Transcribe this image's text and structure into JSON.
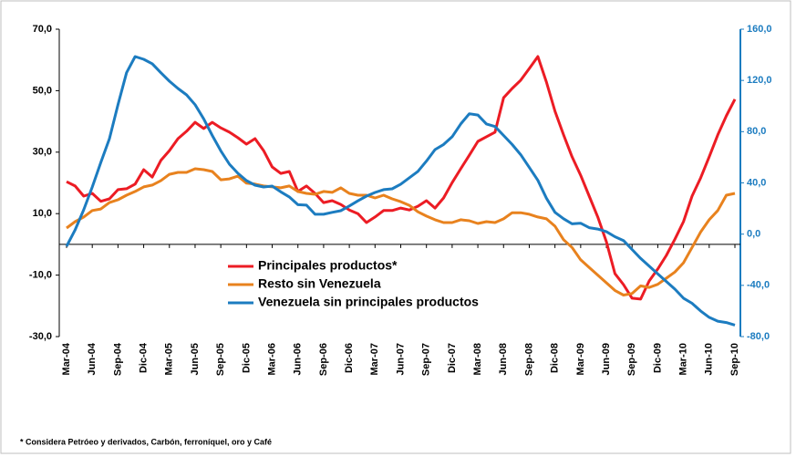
{
  "chart_data": {
    "type": "line",
    "footnote": "* Considera  Petróeo  y derivados, Carbón, ferroníquel,  oro   y Café",
    "categories": [
      "Mar-04",
      null,
      null,
      "Jun-04",
      null,
      null,
      "Sep-04",
      null,
      null,
      "Dic-04",
      null,
      null,
      "Mar-05",
      null,
      null,
      "Jun-05",
      null,
      null,
      "Sep-05",
      null,
      null,
      "Dic-05",
      null,
      null,
      "Mar-06",
      null,
      null,
      "Jun-06",
      null,
      null,
      "Sep-06",
      null,
      null,
      "Dic-06",
      null,
      null,
      "Mar-07",
      null,
      null,
      "Jun-07",
      null,
      null,
      "Sep-07",
      null,
      null,
      "Dic-07",
      null,
      null,
      "Mar-08",
      null,
      null,
      "Jun-08",
      null,
      null,
      "Sep-08",
      null,
      null,
      "Dic-08",
      null,
      null,
      "Mar-09",
      null,
      null,
      "Jun-09",
      null,
      null,
      "Sep-09",
      null,
      null,
      "Dic-09",
      null,
      null,
      "Mar-10",
      null,
      null,
      "Jun-10",
      null,
      null,
      "Sep-10"
    ],
    "series": [
      {
        "name": "Principales productos*",
        "color": "#ec1c24",
        "axis": "y",
        "values": [
          20.4,
          19,
          15.7,
          16.6,
          14,
          14.8,
          17.8,
          18.1,
          19.6,
          24.3,
          21.9,
          27.3,
          30.5,
          34.4,
          36.8,
          39.7,
          37.7,
          39.7,
          37.9,
          36.5,
          34.7,
          32.6,
          34.4,
          30.5,
          25.2,
          23.1,
          23.7,
          17.2,
          19,
          16.6,
          13.6,
          14.2,
          13,
          11.2,
          10,
          7.1,
          8.9,
          11,
          11,
          11.8,
          11.2,
          12.4,
          14.2,
          11.8,
          15.1,
          20.1,
          24.6,
          29,
          33.5,
          35,
          36.5,
          47.7,
          50.7,
          53.4,
          57.2,
          61.1,
          52.8,
          43.3,
          35.6,
          28.5,
          22.5,
          15.7,
          8.9,
          0.9,
          -9.5,
          -13.1,
          -17.5,
          -17.8,
          -11.9,
          -8,
          -3.6,
          1.7,
          7.4,
          15.7,
          21.6,
          28.5,
          35.6,
          41.8,
          47.2
        ]
      },
      {
        "name": "Resto sin Venezuela",
        "color": "#e8821e",
        "axis": "y",
        "values": [
          5.3,
          7.4,
          8.9,
          11,
          11.5,
          13.6,
          14.5,
          16,
          17.2,
          18.7,
          19.3,
          20.7,
          22.8,
          23.4,
          23.4,
          24.6,
          24.3,
          23.7,
          21,
          21.3,
          22.2,
          19.9,
          19.6,
          19,
          18.7,
          18.4,
          19,
          17.2,
          16.6,
          16.3,
          17.2,
          16.9,
          18.4,
          16.6,
          16,
          16,
          15.1,
          16,
          14.8,
          13.9,
          12.7,
          10.6,
          9.2,
          8,
          7.1,
          7.1,
          8,
          7.7,
          6.8,
          7.4,
          7.1,
          8.3,
          10.3,
          10.3,
          9.8,
          8.9,
          8.3,
          5.9,
          1.5,
          -1,
          -5,
          -7.5,
          -10,
          -12.5,
          -15,
          -16.5,
          -16,
          -13.5,
          -14,
          -13,
          -11,
          -9,
          -6,
          -1,
          4,
          8,
          11,
          16,
          16.6
        ]
      },
      {
        "name": "Venezuela sin principales productos",
        "color": "#1c7cc0",
        "axis": "y2",
        "values": [
          -9.5,
          3.3,
          19,
          36.8,
          56,
          74.5,
          101,
          126,
          138.6,
          136.5,
          133,
          126,
          119.4,
          113.7,
          108.7,
          101,
          90,
          77,
          65,
          54.6,
          47.5,
          41.8,
          38.2,
          36.8,
          37.5,
          33,
          29,
          23,
          22.6,
          15.5,
          15.5,
          17,
          18.3,
          22,
          26,
          29.7,
          32.5,
          34.7,
          35.4,
          39,
          44,
          49,
          57,
          66,
          70,
          76,
          86,
          94,
          93,
          86,
          84,
          77,
          70,
          62,
          52,
          42,
          28,
          17,
          12,
          8,
          8.5,
          5,
          4,
          2,
          -2,
          -5,
          -12,
          -19,
          -25,
          -31,
          -37,
          -43,
          -50,
          -54,
          -60,
          -65,
          -68,
          -69,
          -71
        ]
      }
    ],
    "ylim": [
      -30,
      70
    ],
    "yticks": [
      {
        "value": -30,
        "label": "-30,0"
      },
      {
        "value": -10,
        "label": "-10,0"
      },
      {
        "value": 10,
        "label": "10,0"
      },
      {
        "value": 30,
        "label": "30,0"
      },
      {
        "value": 50,
        "label": "50,0"
      },
      {
        "value": 70,
        "label": "70,0"
      }
    ],
    "y2lim": [
      -80,
      160
    ],
    "y2ticks": [
      {
        "value": -80,
        "label": "-80,0"
      },
      {
        "value": -40,
        "label": "-40,0"
      },
      {
        "value": 0,
        "label": "0,0"
      },
      {
        "value": 40,
        "label": "40,0"
      },
      {
        "value": 80,
        "label": "80,0"
      },
      {
        "value": 120,
        "label": "120,0"
      },
      {
        "value": 160,
        "label": "160,0"
      }
    ],
    "y2_color": "#1c7cc0",
    "grid": false
  }
}
